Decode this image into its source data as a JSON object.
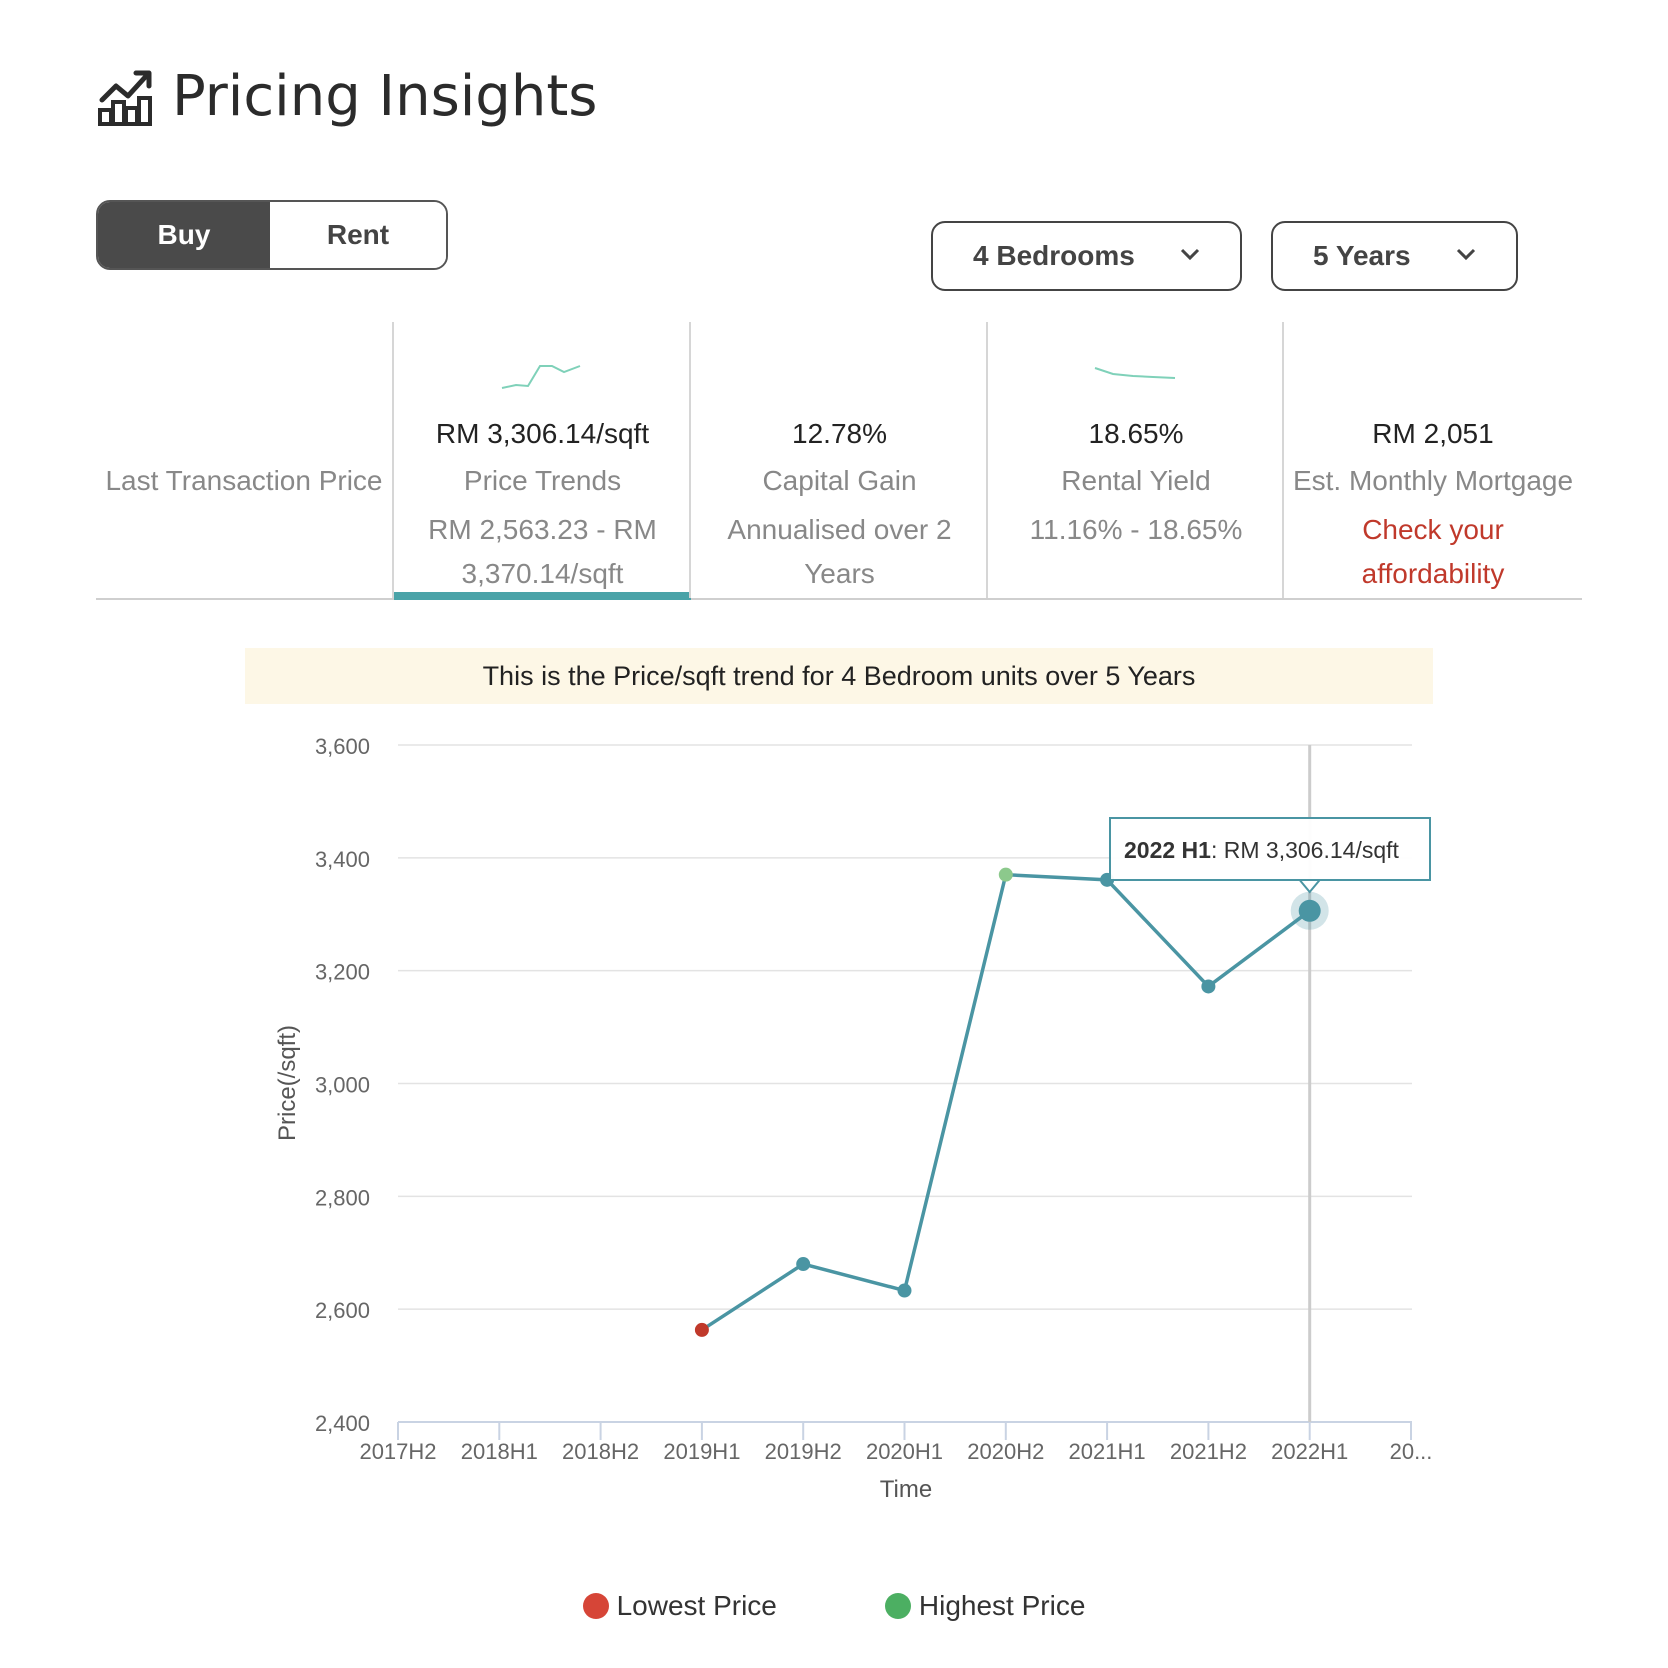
{
  "header": {
    "title": "Pricing Insights",
    "icon": "chart-growth-icon"
  },
  "toggle": {
    "buy_label": "Buy",
    "rent_label": "Rent",
    "selected": "Buy"
  },
  "filters": {
    "bedrooms": "4 Bedrooms",
    "period": "5 Years"
  },
  "metrics": [
    {
      "label": "Last Transaction Price"
    },
    {
      "value": "RM 3,306.14/sqft",
      "label": "Price Trends",
      "sub": "RM 2,563.23 - RM 3,370.14/sqft",
      "selected": true
    },
    {
      "value": "12.78%",
      "label": "Capital Gain",
      "sub": "Annualised over 2 Years"
    },
    {
      "value": "18.65%",
      "label": "Rental Yield",
      "sub": "11.16% - 18.65%"
    },
    {
      "value": "RM 2,051",
      "label": "Est. Monthly Mortgage",
      "sub": "Check your affordability"
    }
  ],
  "banner": "This is the Price/sqft trend for 4 Bedroom units over 5 Years",
  "chart_data": {
    "type": "line",
    "categories": [
      "2017H2",
      "2018H1",
      "2018H2",
      "2019H1",
      "2019H2",
      "2020H1",
      "2020H2",
      "2021H1",
      "2021H2",
      "2022H1",
      "20..."
    ],
    "series": [
      {
        "values": [
          null,
          null,
          null,
          2563.23,
          2680,
          2633,
          3370.14,
          3361,
          3172,
          3306.14,
          null
        ],
        "color": "#4a95a3"
      }
    ],
    "xlabel": "Time",
    "ylabel": "Price(/sqft)",
    "ylim": [
      2400,
      3600
    ],
    "yticks": [
      2400,
      2600,
      2800,
      3000,
      3200,
      3400,
      3600
    ],
    "lowest_index": 3,
    "highest_index": 6,
    "highlight_index": 9,
    "tooltip": {
      "label": "2022 H1",
      "value": ": RM 3,306.14/sqft"
    },
    "grid": true,
    "legend_position": "bottom-center"
  },
  "legend": [
    {
      "label": "Lowest Price",
      "color": "#d64537"
    },
    {
      "label": "Highest Price",
      "color": "#4caf62"
    }
  ],
  "colors": {
    "line": "#4a95a3",
    "accent": "#4aa3a8",
    "low": "#c0392b",
    "high": "#8cc98c"
  }
}
